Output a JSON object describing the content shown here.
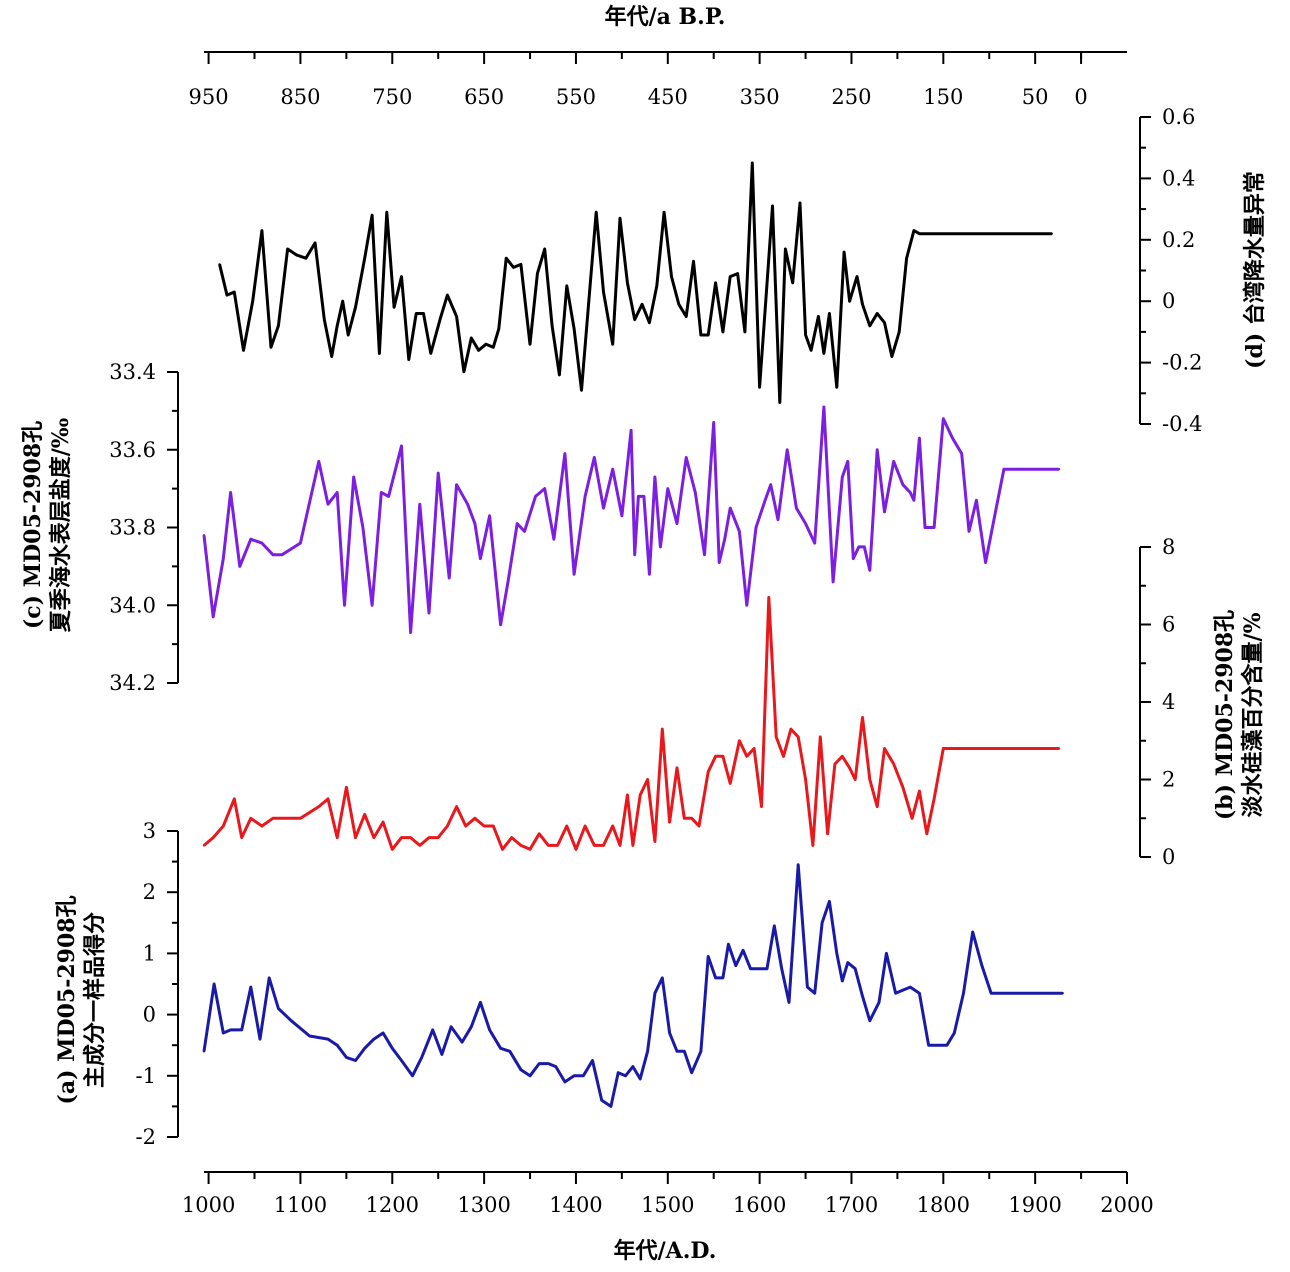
{
  "chart_data": {
    "type": "line",
    "x_axis_bottom": {
      "label": "年代/A.D.",
      "range": [
        995,
        2000
      ],
      "ticks": [
        1000,
        1100,
        1200,
        1300,
        1400,
        1500,
        1600,
        1700,
        1800,
        1900,
        2000
      ],
      "tick_labels": [
        "1000",
        "1100",
        "1200",
        "1300",
        "1400",
        "1500",
        "1600",
        "1700",
        "1800",
        "1900",
        "2000"
      ]
    },
    "x_axis_top": {
      "label": "年代/a B.P.",
      "ticks": [
        950,
        850,
        750,
        650,
        550,
        450,
        350,
        250,
        150,
        50,
        0
      ],
      "tick_labels": [
        "950",
        "850",
        "750",
        "650",
        "550",
        "450",
        "350",
        "250",
        "150",
        "50",
        "0"
      ]
    },
    "series": [
      {
        "id": "d",
        "color": "#000000",
        "label_lines": [
          "(d) 台湾降水量异常"
        ],
        "axis_side": "right",
        "ylim": [
          -0.4,
          0.6
        ],
        "ticks": [
          0.6,
          0.4,
          0.2,
          0,
          -0.2,
          -0.4
        ],
        "tick_labels": [
          "0.6",
          "0.4",
          "0.2",
          "0",
          "-0.2",
          "-0.4"
        ],
        "x": [
          1012,
          1020,
          1028,
          1038,
          1048,
          1058,
          1068,
          1076,
          1086,
          1096,
          1106,
          1116,
          1126,
          1134,
          1140,
          1146,
          1152,
          1160,
          1170,
          1178,
          1186,
          1194,
          1202,
          1210,
          1218,
          1226,
          1234,
          1242,
          1252,
          1260,
          1270,
          1278,
          1286,
          1294,
          1302,
          1310,
          1316,
          1324,
          1332,
          1340,
          1350,
          1358,
          1366,
          1374,
          1382,
          1390,
          1398,
          1406,
          1414,
          1422,
          1430,
          1440,
          1448,
          1456,
          1464,
          1472,
          1480,
          1488,
          1496,
          1504,
          1512,
          1520,
          1528,
          1536,
          1544,
          1552,
          1560,
          1568,
          1576,
          1584,
          1592,
          1600,
          1606,
          1614,
          1622,
          1628,
          1636,
          1644,
          1650,
          1656,
          1664,
          1670,
          1676,
          1684,
          1692,
          1698,
          1706,
          1712,
          1720,
          1728,
          1736,
          1744,
          1752,
          1760,
          1768,
          1774,
          1782,
          1790,
          1798,
          1806,
          1814,
          1822,
          1830,
          1838,
          1846,
          1854,
          1862,
          1870,
          1878,
          1886,
          1894,
          1902,
          1910,
          1918
        ],
        "values": [
          0.12,
          0.02,
          0.03,
          -0.16,
          0.0,
          0.23,
          -0.15,
          -0.08,
          0.17,
          0.15,
          0.14,
          0.19,
          -0.06,
          -0.18,
          -0.08,
          0.0,
          -0.11,
          -0.02,
          0.14,
          0.28,
          -0.17,
          0.29,
          -0.02,
          0.08,
          -0.19,
          -0.04,
          -0.04,
          -0.17,
          -0.06,
          0.02,
          -0.05,
          -0.23,
          -0.12,
          -0.16,
          -0.14,
          -0.15,
          -0.09,
          0.14,
          0.11,
          0.12,
          -0.14,
          0.09,
          0.17,
          -0.08,
          -0.24,
          0.05,
          -0.09,
          -0.29,
          0.0,
          0.29,
          0.03,
          -0.14,
          0.27,
          0.06,
          -0.06,
          -0.01,
          -0.07,
          0.05,
          0.29,
          0.08,
          -0.01,
          -0.05,
          0.13,
          -0.11,
          -0.11,
          0.06,
          -0.1,
          0.08,
          0.09,
          -0.1,
          0.45,
          -0.28,
          -0.03,
          0.31,
          -0.33,
          0.17,
          0.06,
          0.32,
          -0.11,
          -0.16,
          -0.05,
          -0.17,
          -0.04,
          -0.28,
          0.16,
          0.0,
          0.08,
          -0.01,
          -0.08,
          -0.04,
          -0.07,
          -0.18,
          -0.1,
          0.14,
          0.23,
          0.22,
          0.22,
          0.22,
          0.22,
          0.22,
          0.22,
          0.22,
          0.22,
          0.22,
          0.22,
          0.22,
          0.22,
          0.22,
          0.22,
          0.22,
          0.22,
          0.22,
          0.22,
          0.22
        ]
      },
      {
        "id": "c",
        "color": "#7c1fe0",
        "label_lines": [
          "(c) MD05-2908孔",
          "夏季海水表层盐度/‰"
        ],
        "axis_side": "left",
        "ylim": [
          34.2,
          33.4
        ],
        "ticks": [
          33.4,
          33.6,
          33.8,
          34.0,
          34.2
        ],
        "tick_labels": [
          "33.4",
          "33.6",
          "33.8",
          "34.0",
          "34.2"
        ],
        "x": [
          995,
          1005,
          1016,
          1024,
          1034,
          1046,
          1058,
          1070,
          1080,
          1100,
          1120,
          1130,
          1140,
          1148,
          1158,
          1168,
          1178,
          1188,
          1196,
          1210,
          1220,
          1230,
          1240,
          1250,
          1262,
          1270,
          1282,
          1290,
          1296,
          1306,
          1318,
          1326,
          1336,
          1344,
          1356,
          1366,
          1376,
          1388,
          1398,
          1410,
          1420,
          1430,
          1440,
          1450,
          1460,
          1464,
          1468,
          1474,
          1480,
          1486,
          1492,
          1500,
          1510,
          1520,
          1530,
          1540,
          1550,
          1556,
          1562,
          1568,
          1578,
          1586,
          1596,
          1606,
          1612,
          1620,
          1630,
          1640,
          1650,
          1660,
          1670,
          1680,
          1690,
          1696,
          1702,
          1708,
          1714,
          1720,
          1728,
          1736,
          1746,
          1756,
          1764,
          1768,
          1774,
          1780,
          1790,
          1800,
          1810,
          1820,
          1828,
          1836,
          1846,
          1856,
          1866,
          1876,
          1886,
          1896,
          1906,
          1916,
          1926
        ],
        "values": [
          33.82,
          34.03,
          33.88,
          33.71,
          33.9,
          33.83,
          33.84,
          33.87,
          33.87,
          33.84,
          33.63,
          33.74,
          33.71,
          34.0,
          33.67,
          33.8,
          34.0,
          33.71,
          33.72,
          33.59,
          34.07,
          33.74,
          34.02,
          33.66,
          33.93,
          33.69,
          33.74,
          33.79,
          33.88,
          33.77,
          34.05,
          33.94,
          33.79,
          33.81,
          33.72,
          33.7,
          33.83,
          33.61,
          33.92,
          33.72,
          33.62,
          33.75,
          33.65,
          33.77,
          33.55,
          33.87,
          33.72,
          33.72,
          33.92,
          33.67,
          33.85,
          33.7,
          33.79,
          33.62,
          33.71,
          33.87,
          33.53,
          33.89,
          33.83,
          33.75,
          33.81,
          34.0,
          33.8,
          33.73,
          33.69,
          33.78,
          33.6,
          33.75,
          33.79,
          33.84,
          33.49,
          33.94,
          33.67,
          33.63,
          33.88,
          33.85,
          33.85,
          33.91,
          33.6,
          33.76,
          33.63,
          33.69,
          33.71,
          33.73,
          33.57,
          33.8,
          33.8,
          33.52,
          33.57,
          33.61,
          33.81,
          33.73,
          33.89,
          33.77,
          33.65,
          33.65,
          33.65,
          33.65,
          33.65,
          33.65,
          33.65
        ]
      },
      {
        "id": "b",
        "color": "#e8181c",
        "label_lines": [
          "(b) MD05-2908孔",
          "淡水硅藻百分含量/%"
        ],
        "axis_side": "right",
        "ylim": [
          0,
          8
        ],
        "ticks": [
          0,
          2,
          4,
          6,
          8
        ],
        "tick_labels": [
          "0",
          "2",
          "4",
          "6",
          "8"
        ],
        "x": [
          995,
          1005,
          1016,
          1028,
          1036,
          1046,
          1058,
          1070,
          1080,
          1100,
          1120,
          1130,
          1140,
          1150,
          1160,
          1170,
          1180,
          1190,
          1200,
          1210,
          1220,
          1230,
          1240,
          1250,
          1260,
          1270,
          1280,
          1290,
          1300,
          1310,
          1320,
          1330,
          1340,
          1350,
          1360,
          1370,
          1380,
          1390,
          1400,
          1410,
          1420,
          1430,
          1440,
          1448,
          1456,
          1462,
          1470,
          1478,
          1486,
          1494,
          1502,
          1510,
          1518,
          1526,
          1534,
          1544,
          1552,
          1560,
          1568,
          1578,
          1586,
          1594,
          1602,
          1610,
          1618,
          1626,
          1634,
          1642,
          1650,
          1658,
          1666,
          1674,
          1682,
          1690,
          1698,
          1704,
          1712,
          1720,
          1728,
          1736,
          1746,
          1756,
          1766,
          1774,
          1782,
          1790,
          1800,
          1810,
          1820,
          1828,
          1836,
          1846,
          1856,
          1866,
          1876,
          1886,
          1896,
          1906,
          1916,
          1926
        ],
        "values": [
          0.3,
          0.5,
          0.8,
          1.5,
          0.5,
          1.0,
          0.8,
          1.0,
          1.0,
          1.0,
          1.3,
          1.5,
          0.5,
          1.8,
          0.5,
          1.1,
          0.5,
          0.9,
          0.2,
          0.5,
          0.5,
          0.3,
          0.5,
          0.5,
          0.8,
          1.3,
          0.8,
          1.0,
          0.8,
          0.8,
          0.2,
          0.5,
          0.3,
          0.2,
          0.6,
          0.3,
          0.3,
          0.8,
          0.2,
          0.8,
          0.3,
          0.3,
          0.8,
          0.3,
          1.6,
          0.3,
          1.6,
          2.0,
          0.4,
          3.3,
          0.9,
          2.3,
          1.0,
          1.0,
          0.8,
          2.2,
          2.6,
          2.6,
          1.9,
          3.0,
          2.6,
          2.8,
          1.3,
          6.7,
          3.1,
          2.6,
          3.3,
          3.1,
          2.0,
          0.3,
          3.1,
          0.6,
          2.4,
          2.6,
          2.3,
          2.0,
          3.6,
          2.0,
          1.3,
          2.8,
          2.4,
          1.8,
          1.0,
          1.7,
          0.6,
          1.5,
          2.8,
          2.8,
          2.8,
          2.8,
          2.8,
          2.8,
          2.8,
          2.8,
          2.8,
          2.8,
          2.8,
          2.8,
          2.8,
          2.8
        ],
        "baseline_value": 3
      },
      {
        "id": "a",
        "color": "#1a1aa8",
        "label_lines": [
          "(a) MD05-2908孔",
          "主成分一样品得分"
        ],
        "axis_side": "left",
        "ylim": [
          -2,
          3
        ],
        "ticks": [
          -2,
          -1,
          0,
          1,
          2,
          3
        ],
        "tick_labels": [
          "-2",
          "-1",
          "0",
          "1",
          "2",
          "3"
        ],
        "x": [
          995,
          1006,
          1016,
          1024,
          1036,
          1046,
          1056,
          1066,
          1076,
          1090,
          1110,
          1130,
          1140,
          1150,
          1160,
          1170,
          1180,
          1190,
          1200,
          1210,
          1222,
          1232,
          1244,
          1254,
          1264,
          1276,
          1286,
          1296,
          1306,
          1318,
          1328,
          1340,
          1350,
          1360,
          1370,
          1378,
          1388,
          1398,
          1408,
          1418,
          1428,
          1438,
          1446,
          1454,
          1462,
          1470,
          1478,
          1486,
          1494,
          1502,
          1510,
          1518,
          1526,
          1536,
          1544,
          1552,
          1560,
          1566,
          1574,
          1582,
          1590,
          1600,
          1608,
          1616,
          1624,
          1632,
          1642,
          1652,
          1660,
          1668,
          1676,
          1684,
          1690,
          1696,
          1704,
          1712,
          1720,
          1730,
          1738,
          1748,
          1756,
          1764,
          1774,
          1784,
          1794,
          1804,
          1812,
          1822,
          1832,
          1842,
          1852,
          1862,
          1872,
          1882,
          1890,
          1900,
          1910,
          1920,
          1930
        ],
        "values": [
          -0.6,
          0.5,
          -0.3,
          -0.25,
          -0.25,
          0.45,
          -0.4,
          0.6,
          0.1,
          -0.1,
          -0.35,
          -0.4,
          -0.5,
          -0.7,
          -0.75,
          -0.55,
          -0.4,
          -0.3,
          -0.55,
          -0.75,
          -1.0,
          -0.7,
          -0.25,
          -0.65,
          -0.2,
          -0.45,
          -0.2,
          0.2,
          -0.25,
          -0.55,
          -0.6,
          -0.9,
          -1.0,
          -0.8,
          -0.8,
          -0.85,
          -1.1,
          -1.0,
          -1.0,
          -0.75,
          -1.4,
          -1.5,
          -0.95,
          -1.0,
          -0.85,
          -1.05,
          -0.6,
          0.35,
          0.6,
          -0.3,
          -0.6,
          -0.6,
          -0.95,
          -0.6,
          0.95,
          0.6,
          0.6,
          1.15,
          0.8,
          1.05,
          0.75,
          0.75,
          0.75,
          1.45,
          0.75,
          0.2,
          2.45,
          0.45,
          0.35,
          1.5,
          1.85,
          1.0,
          0.55,
          0.85,
          0.75,
          0.3,
          -0.1,
          0.2,
          1.0,
          0.35,
          0.4,
          0.45,
          0.35,
          -0.5,
          -0.5,
          -0.5,
          -0.3,
          0.35,
          1.35,
          0.8,
          0.35,
          0.35,
          0.35,
          0.35,
          0.35,
          0.35,
          0.35,
          0.35,
          0.35
        ]
      }
    ]
  }
}
